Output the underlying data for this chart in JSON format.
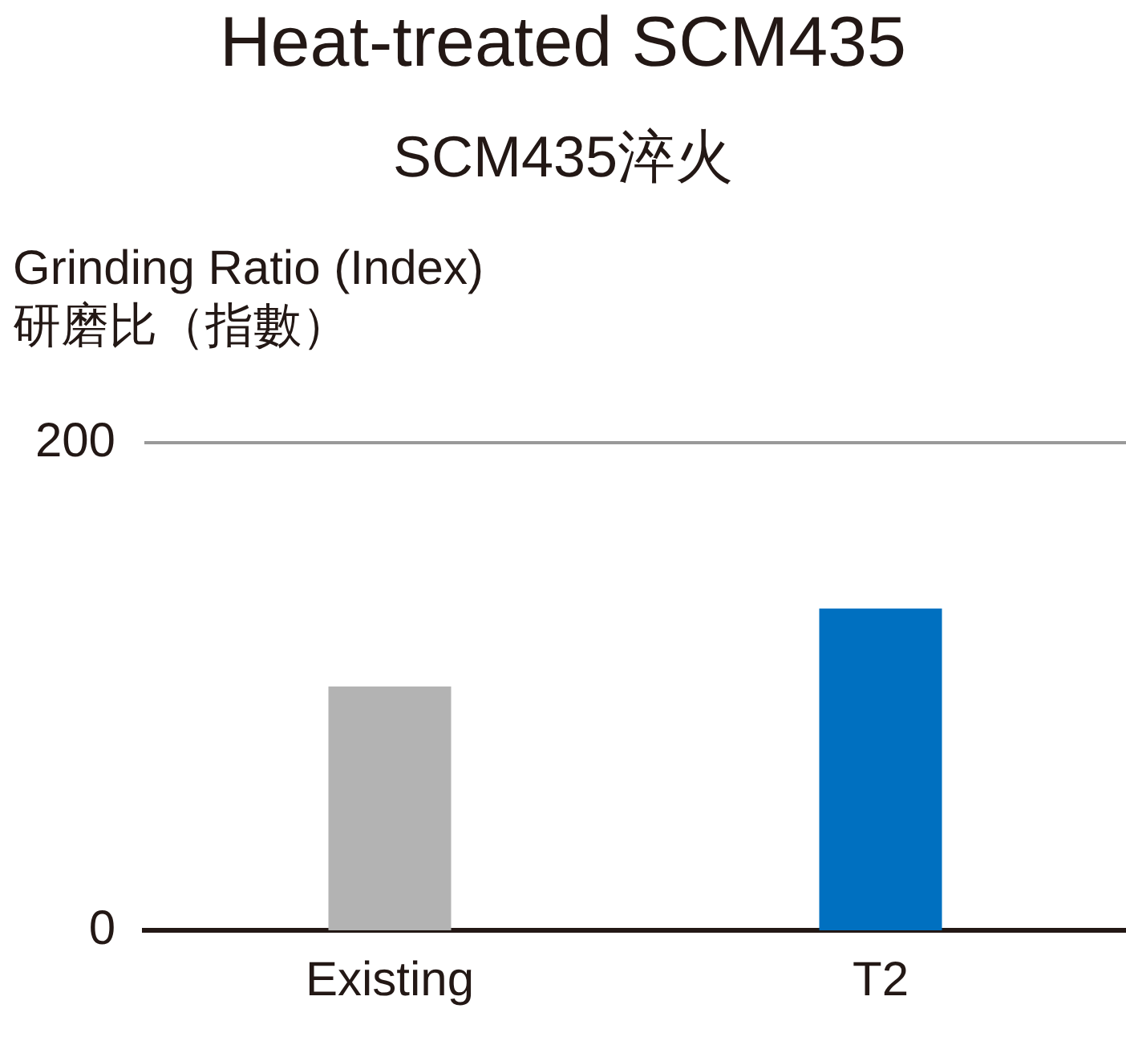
{
  "chart_data": {
    "type": "bar",
    "title": "Heat-treated SCM435",
    "subtitle": "SCM435淬火",
    "ylabel": "Grinding Ratio (Index)\n研磨比（指數）",
    "categories": [
      "Existing",
      "T2"
    ],
    "values": [
      100,
      132
    ],
    "colors": [
      "#b3b3b3",
      "#0070c0"
    ],
    "ylim": [
      0,
      200
    ],
    "yticks": [
      0,
      200
    ],
    "ref_lines": [
      {
        "axis": "y",
        "value": 200,
        "color": "#999999"
      }
    ],
    "legend": false
  }
}
